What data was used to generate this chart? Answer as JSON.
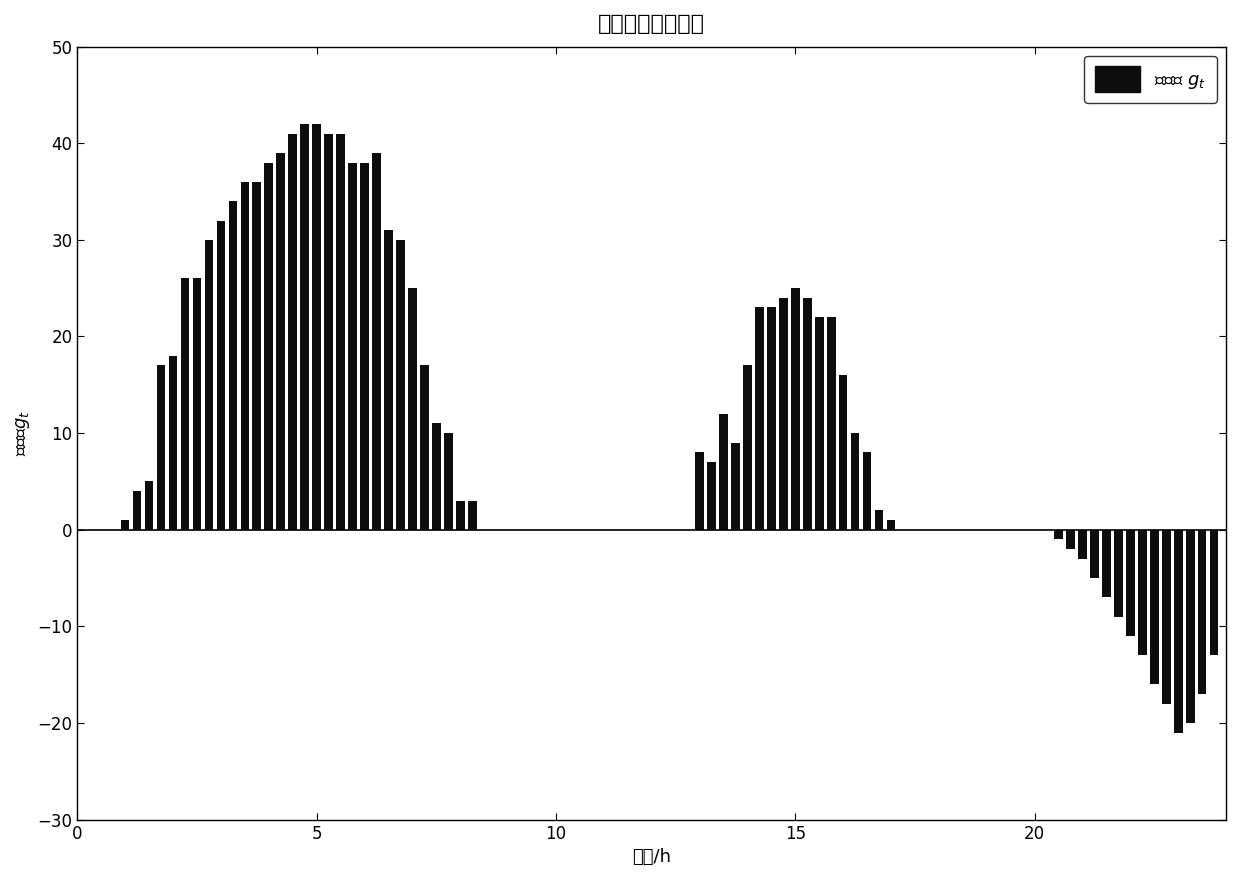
{
  "title": "此月积分政策曲线",
  "xlabel": "时间/h",
  "ylabel": "积分值g_t",
  "xlim": [
    0,
    24
  ],
  "ylim": [
    -30,
    50
  ],
  "yticks": [
    -30,
    -20,
    -10,
    0,
    10,
    20,
    30,
    40,
    50
  ],
  "xticks": [
    0,
    5,
    10,
    15,
    20
  ],
  "bar_color": "#0d0d0d",
  "legend_label": "积分值 g_t",
  "bar_width": 0.18,
  "group1_x": [
    1.0,
    1.25,
    1.5,
    1.75,
    2.0,
    2.25,
    2.5,
    2.75,
    3.0,
    3.25,
    3.5,
    3.75,
    4.0,
    4.25,
    4.5,
    4.75,
    5.0,
    5.25,
    5.5,
    5.75,
    6.0,
    6.25,
    6.5,
    6.75,
    7.0,
    7.25,
    7.5,
    7.75,
    8.0,
    8.25
  ],
  "group1_v": [
    1,
    4,
    5,
    17,
    18,
    26,
    26,
    30,
    32,
    34,
    36,
    36,
    38,
    39,
    41,
    42,
    42,
    41,
    41,
    38,
    38,
    39,
    31,
    30,
    25,
    17,
    11,
    10,
    3,
    3
  ],
  "group2_x": [
    13.0,
    13.25,
    13.5,
    13.75,
    14.0,
    14.25,
    14.5,
    14.75,
    15.0,
    15.25,
    15.5,
    15.75,
    16.0,
    16.25,
    16.5,
    16.75,
    17.0
  ],
  "group2_v": [
    8,
    7,
    12,
    9,
    17,
    23,
    23,
    24,
    25,
    24,
    22,
    22,
    16,
    10,
    8,
    2,
    1
  ],
  "group3_x": [
    20.5,
    20.75,
    21.0,
    21.25,
    21.5,
    21.75,
    22.0,
    22.25,
    22.5,
    22.75,
    23.0,
    23.25,
    23.5,
    23.75
  ],
  "group3_v": [
    -1,
    -2,
    -3,
    -5,
    -7,
    -9,
    -11,
    -13,
    -16,
    -18,
    -21,
    -20,
    -17,
    -13
  ]
}
